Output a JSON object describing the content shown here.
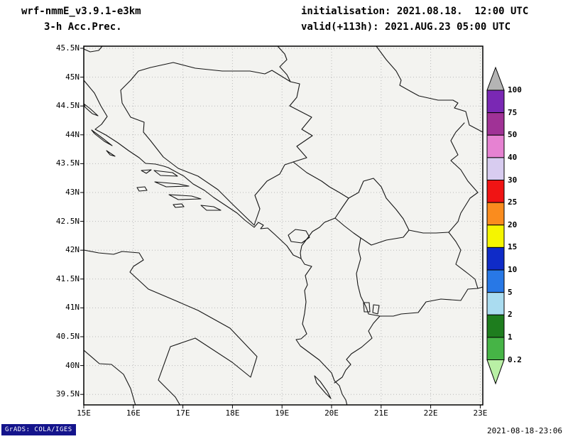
{
  "header": {
    "model": "wrf-nmmE_v3.9.1-e3km",
    "product": "3-h Acc.Prec.",
    "initialisation": "initialisation: 2021.08.18.  12:00 UTC",
    "valid": "valid(+113h): 2021.AUG.23 05:00 UTC"
  },
  "map": {
    "lat_labels": [
      "45.5N",
      "45N",
      "44.5N",
      "44N",
      "43.5N",
      "43N",
      "42.5N",
      "42N",
      "41.5N",
      "41N",
      "40.5N",
      "40N",
      "39.5N"
    ],
    "lon_labels": [
      "15E",
      "16E",
      "17E",
      "18E",
      "19E",
      "20E",
      "21E",
      "22E",
      "23E"
    ]
  },
  "colorbar": {
    "tick_labels": [
      "100",
      "75",
      "50",
      "40",
      "30",
      "25",
      "20",
      "15",
      "10",
      "5",
      "2",
      "1",
      "0.2"
    ],
    "segment_colors_top_to_bottom": [
      "#7a28b4",
      "#a03296",
      "#e682d2",
      "#d8ccf0",
      "#f01414",
      "#fa8c1e",
      "#f5f500",
      "#0f2bc8",
      "#2878e6",
      "#aadcf0",
      "#1e7d1e",
      "#46b446"
    ],
    "above_max_color": "#b4b4b4",
    "below_min_color": "#b9f0a5"
  },
  "footer": {
    "credit": "GrADS: COLA/IGES",
    "timestamp": "2021-08-18-23:06"
  }
}
